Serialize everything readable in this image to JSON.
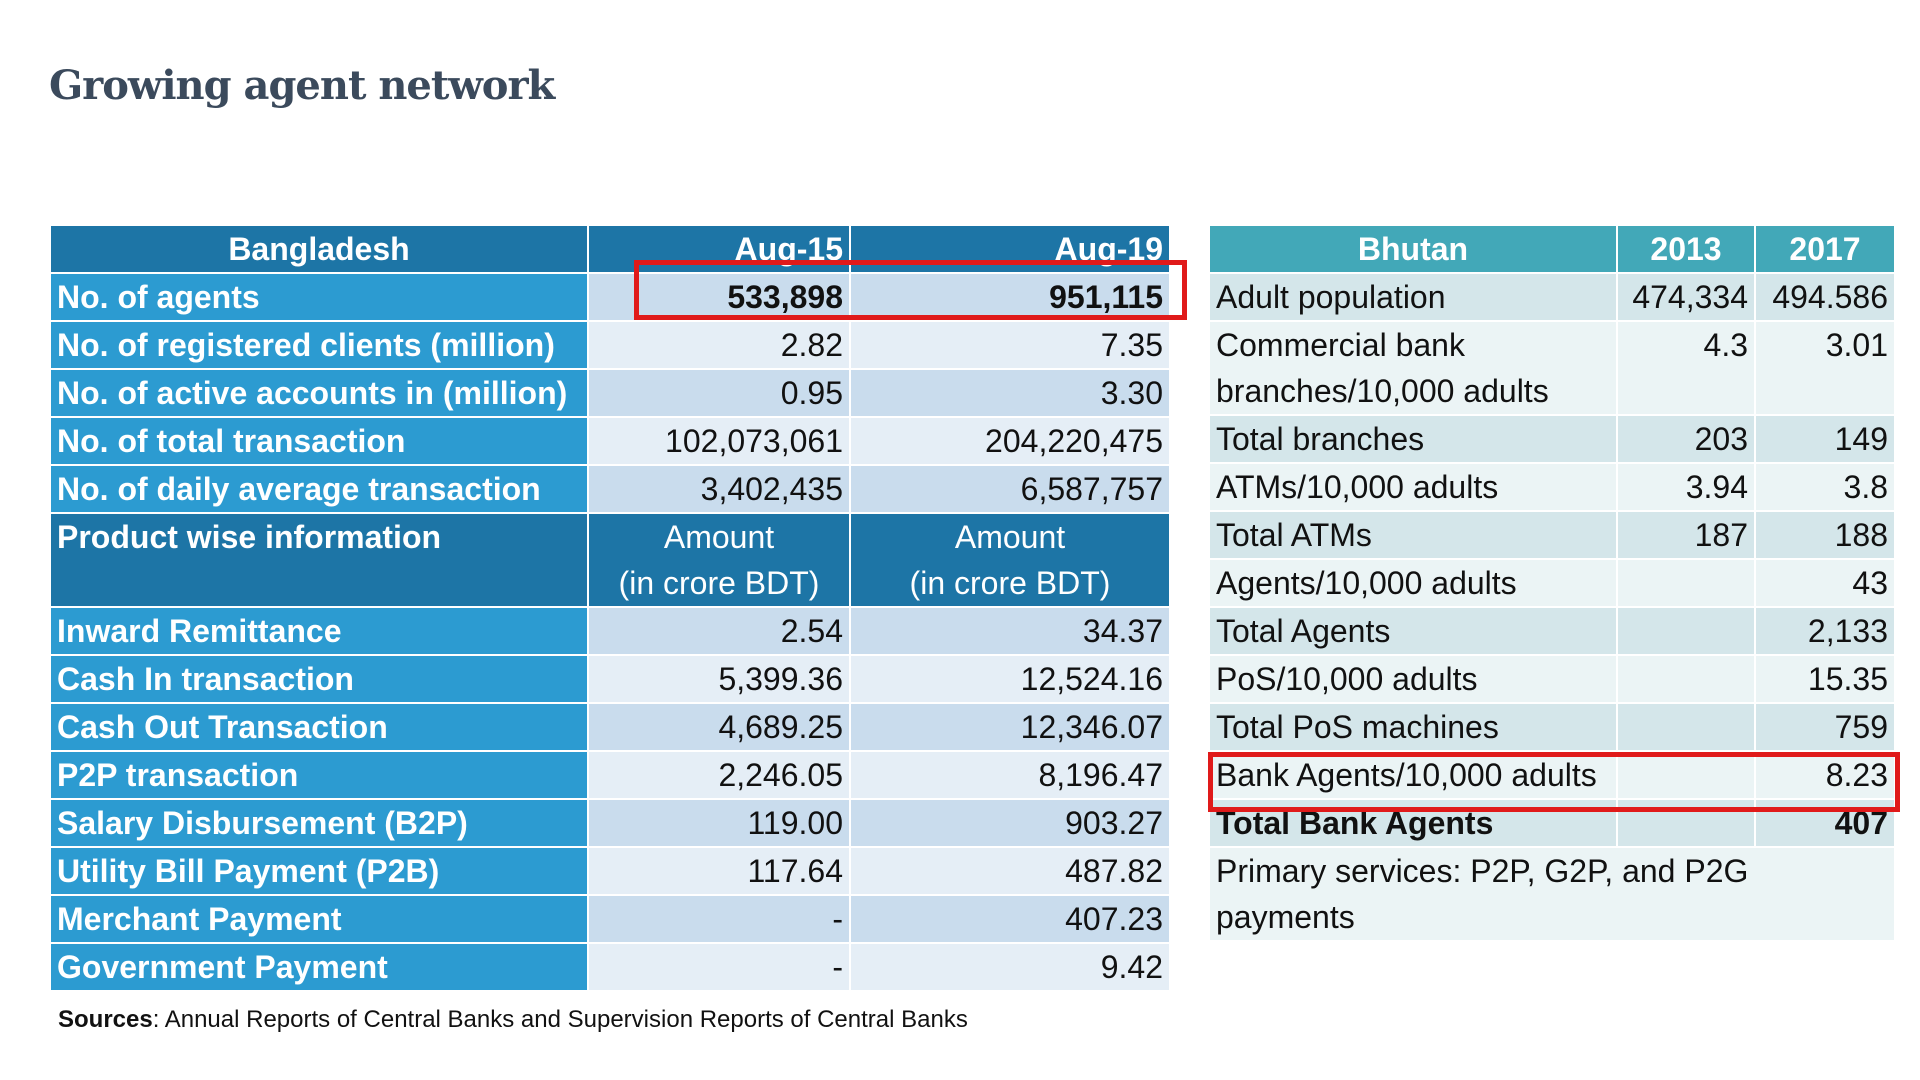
{
  "title": "Growing agent network",
  "bangladesh": {
    "header": [
      "Bangladesh",
      "Aug-15",
      "Aug-19"
    ],
    "rows": [
      {
        "label": "No. of agents",
        "v1": "533,898",
        "v2": "951,115"
      },
      {
        "label": "No. of registered clients (million)",
        "v1": "2.82",
        "v2": "7.35"
      },
      {
        "label": "No. of active accounts in (million)",
        "v1": "0.95",
        "v2": "3.30"
      },
      {
        "label": "No. of total transaction",
        "v1": "102,073,061",
        "v2": "204,220,475"
      },
      {
        "label": "No. of daily average transaction",
        "v1": "3,402,435",
        "v2": "6,587,757"
      }
    ],
    "product_header": {
      "label": "Product wise information",
      "amount": "Amount",
      "unit": "(in crore BDT)"
    },
    "product_rows": [
      {
        "label": "Inward Remittance",
        "v1": "2.54",
        "v2": "34.37"
      },
      {
        "label": "Cash In transaction",
        "v1": "5,399.36",
        "v2": "12,524.16"
      },
      {
        "label": "Cash Out Transaction",
        "v1": "4,689.25",
        "v2": "12,346.07"
      },
      {
        "label": "P2P transaction",
        "v1": "2,246.05",
        "v2": "8,196.47"
      },
      {
        "label": "Salary Disbursement (B2P)",
        "v1": "119.00",
        "v2": "903.27"
      },
      {
        "label": "Utility Bill Payment (P2B)",
        "v1": "117.64",
        "v2": "487.82"
      },
      {
        "label": "Merchant Payment",
        "v1": "-",
        "v2": "407.23"
      },
      {
        "label": "Government Payment",
        "v1": "-",
        "v2": "9.42"
      }
    ]
  },
  "bhutan": {
    "header": [
      "Bhutan",
      "2013",
      "2017"
    ],
    "rows": [
      {
        "label": "Adult population",
        "v1": "474,334",
        "v2": "494.586"
      },
      {
        "label": "Commercial bank branches/10,000 adults",
        "v1": "4.3",
        "v2": "3.01"
      },
      {
        "label": "Total branches",
        "v1": "203",
        "v2": "149"
      },
      {
        "label": "ATMs/10,000 adults",
        "v1": "3.94",
        "v2": "3.8"
      },
      {
        "label": "Total ATMs",
        "v1": "187",
        "v2": "188"
      },
      {
        "label": "Agents/10,000 adults",
        "v1": "",
        "v2": "43"
      },
      {
        "label": "Total Agents",
        "v1": "",
        "v2": "2,133"
      },
      {
        "label": "PoS/10,000 adults",
        "v1": "",
        "v2": "15.35"
      },
      {
        "label": "Total PoS machines",
        "v1": "",
        "v2": "759"
      },
      {
        "label": "Bank Agents/10,000 adults",
        "v1": "",
        "v2": "8.23"
      },
      {
        "label": "Total Bank Agents",
        "v1": "",
        "v2": "407"
      }
    ],
    "footer_note": "Primary services: P2P, G2P, and P2G payments"
  },
  "sources": {
    "label": "Sources",
    "text": ": Annual Reports of Central Banks and Supervision Reports of Central Banks"
  },
  "colors": {
    "bd_dark": "#1d75a6",
    "bd_label": "#2c9bd1",
    "bt_header": "#42a8b8",
    "highlight": "#e01a1a"
  }
}
